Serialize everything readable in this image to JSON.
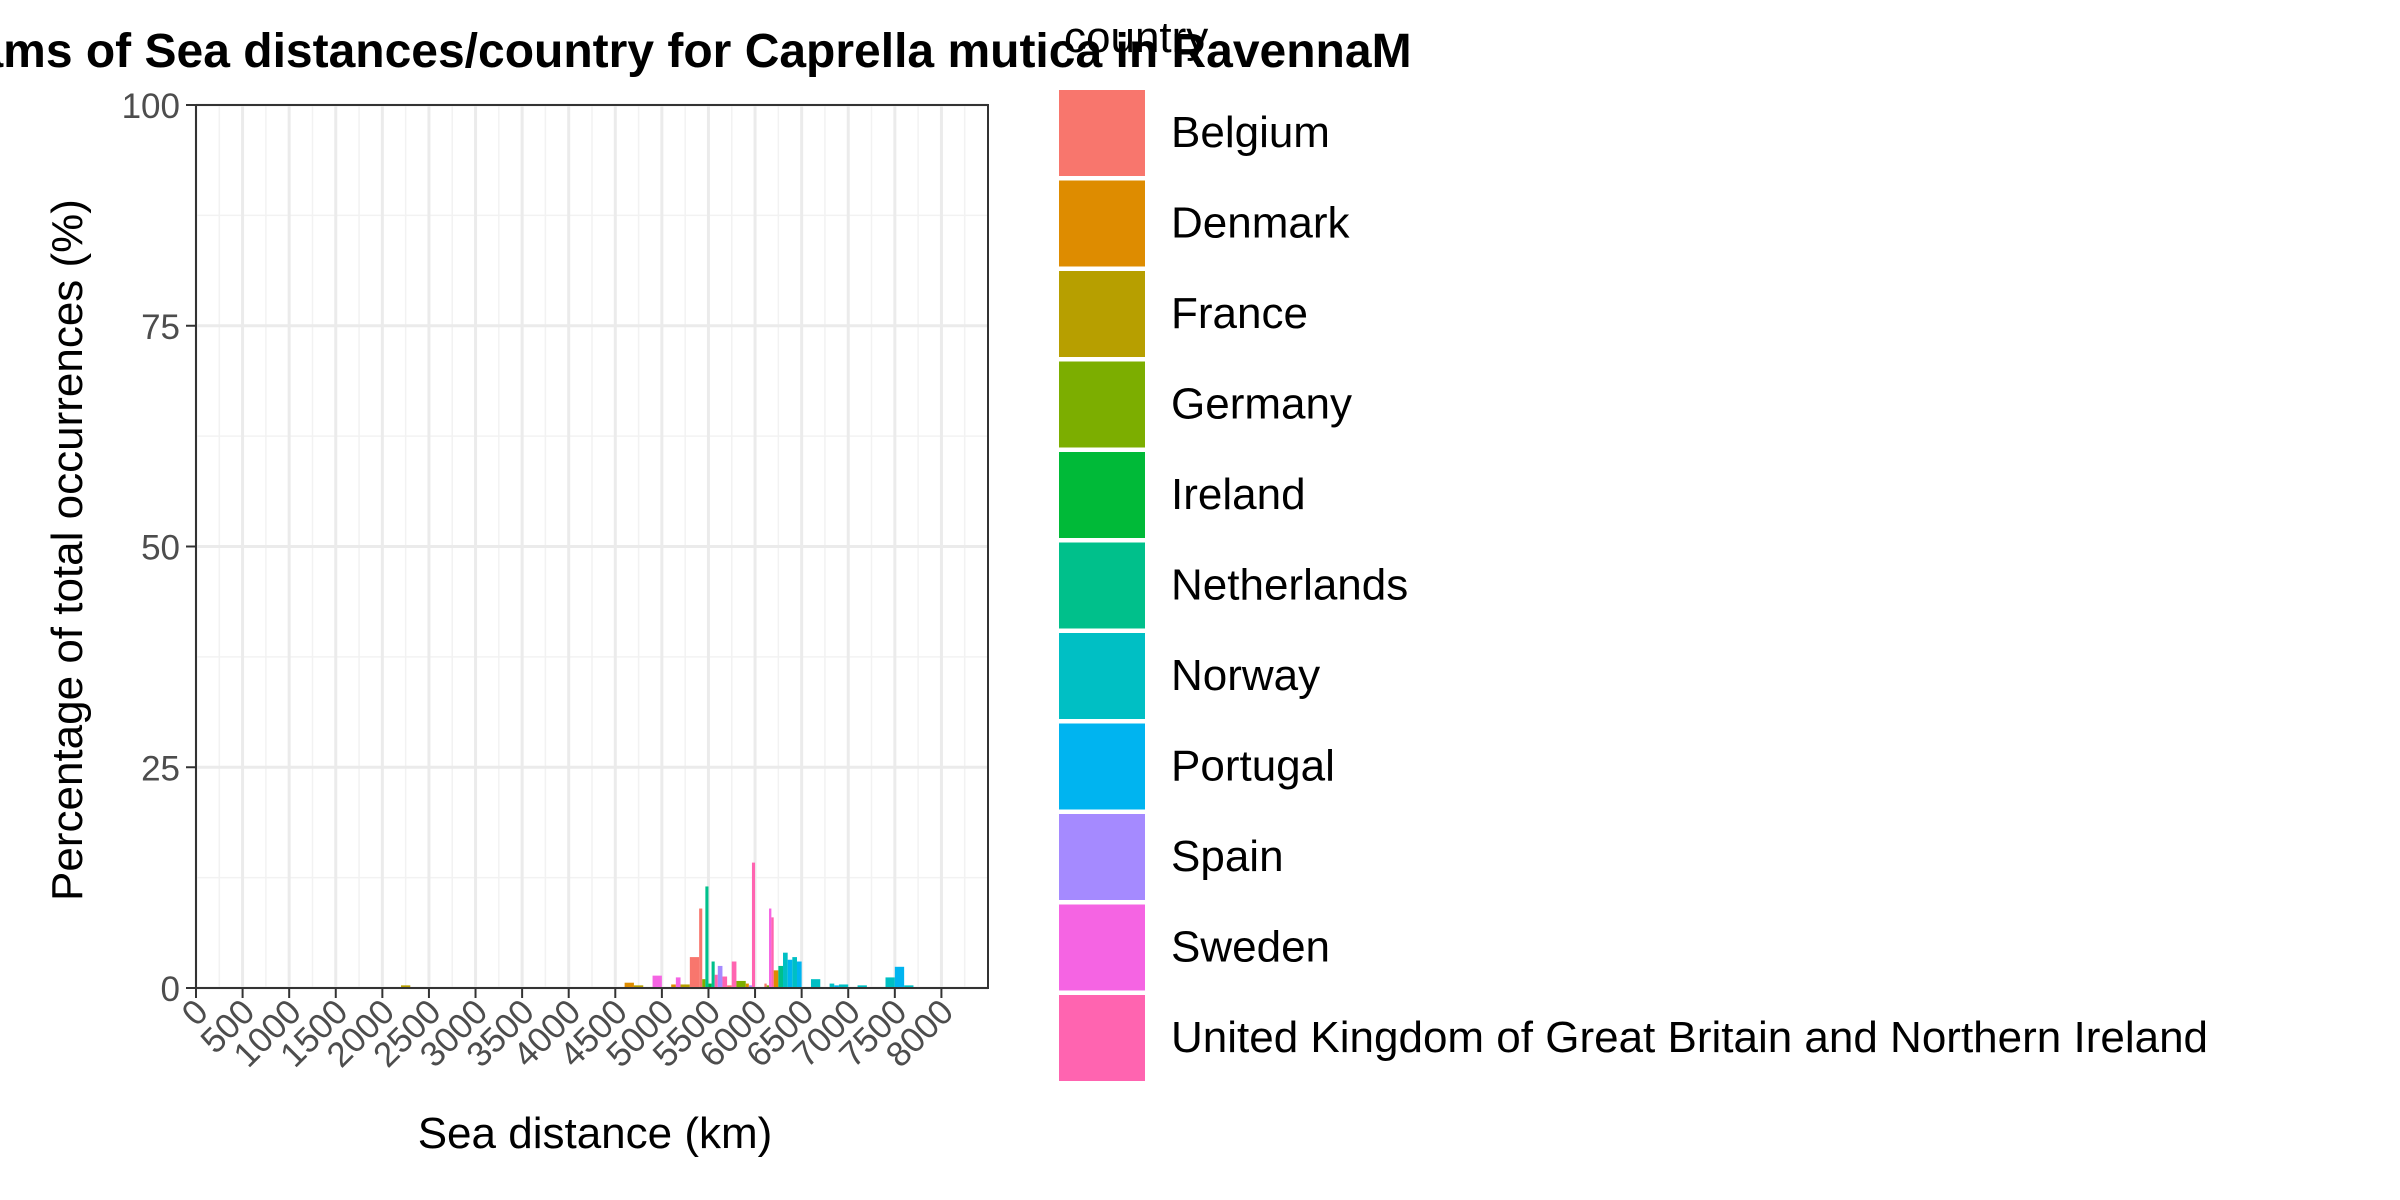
{
  "chart_data": {
    "type": "bar",
    "title": "Histograms of Sea distances/country for Caprella mutica in RavennaM",
    "xlabel": "Sea distance (km)",
    "ylabel": "Percentage of total occurrences (%)",
    "xlim": [
      0,
      8500
    ],
    "ylim": [
      0,
      100
    ],
    "x_ticks": [
      0,
      500,
      1000,
      1500,
      2000,
      2500,
      3000,
      3500,
      4000,
      4500,
      5000,
      5500,
      6000,
      6500,
      7000,
      7500,
      8000
    ],
    "y_ticks": [
      0,
      25,
      50,
      75,
      100
    ],
    "grid": true,
    "bin_width_km": 100,
    "legend": {
      "title": "country",
      "position": "right",
      "entries": [
        {
          "name": "Belgium",
          "color": "#F8766D"
        },
        {
          "name": "Denmark",
          "color": "#DE8C00"
        },
        {
          "name": "France",
          "color": "#B79F00"
        },
        {
          "name": "Germany",
          "color": "#7CAE00"
        },
        {
          "name": "Ireland",
          "color": "#00BA38"
        },
        {
          "name": "Netherlands",
          "color": "#00C08B"
        },
        {
          "name": "Norway",
          "color": "#00BFC4"
        },
        {
          "name": "Portugal",
          "color": "#00B4F0"
        },
        {
          "name": "Spain",
          "color": "#A58AFF"
        },
        {
          "name": "Sweden",
          "color": "#F564E3"
        },
        {
          "name": "United Kingdom of Great Britain and Northern Ireland",
          "color": "#FF64B0"
        }
      ]
    },
    "series": [
      {
        "name": "Belgium",
        "color": "#F8766D",
        "points": [
          [
            5350,
            3.5
          ],
          [
            5450,
            9.0
          ],
          [
            5750,
            0.3
          ],
          [
            6150,
            0.5
          ]
        ]
      },
      {
        "name": "Denmark",
        "color": "#DE8C00",
        "points": [
          [
            4650,
            0.6
          ],
          [
            5150,
            0.4
          ],
          [
            5950,
            0.5
          ],
          [
            6250,
            2.0
          ]
        ]
      },
      {
        "name": "France",
        "color": "#B79F00",
        "points": [
          [
            2250,
            0.3
          ],
          [
            4750,
            0.3
          ],
          [
            5250,
            0.4
          ]
        ]
      },
      {
        "name": "Germany",
        "color": "#7CAE00",
        "points": [
          [
            5450,
            1.0
          ],
          [
            5850,
            0.8
          ],
          [
            6150,
            0.3
          ]
        ]
      },
      {
        "name": "Ireland",
        "color": "#00BA38",
        "points": [
          [
            5550,
            0.5
          ]
        ]
      },
      {
        "name": "Netherlands",
        "color": "#00C08B",
        "points": [
          [
            5450,
            11.5
          ],
          [
            5550,
            3.0
          ],
          [
            6250,
            2.5
          ]
        ]
      },
      {
        "name": "Norway",
        "color": "#00BFC4",
        "points": [
          [
            6350,
            4.0
          ],
          [
            6450,
            3.5
          ],
          [
            6650,
            1.0
          ],
          [
            6850,
            0.5
          ],
          [
            6950,
            0.4
          ],
          [
            7150,
            0.3
          ],
          [
            7450,
            1.2
          ],
          [
            7650,
            0.3
          ]
        ]
      },
      {
        "name": "Portugal",
        "color": "#00B4F0",
        "points": [
          [
            6350,
            3.2
          ],
          [
            6450,
            3.0
          ],
          [
            6850,
            0.3
          ],
          [
            7550,
            2.4
          ]
        ]
      },
      {
        "name": "Spain",
        "color": "#A58AFF",
        "points": [
          [
            5650,
            2.5
          ],
          [
            5950,
            0.3
          ]
        ]
      },
      {
        "name": "Sweden",
        "color": "#F564E3",
        "points": [
          [
            4950,
            1.4
          ],
          [
            5150,
            1.2
          ],
          [
            6150,
            9.0
          ]
        ]
      },
      {
        "name": "United Kingdom of Great Britain and Northern Ireland",
        "color": "#FF64B0",
        "points": [
          [
            5550,
            1.5
          ],
          [
            5650,
            1.3
          ],
          [
            5750,
            3.0
          ],
          [
            5950,
            14.2
          ],
          [
            6150,
            8.0
          ]
        ]
      }
    ]
  }
}
